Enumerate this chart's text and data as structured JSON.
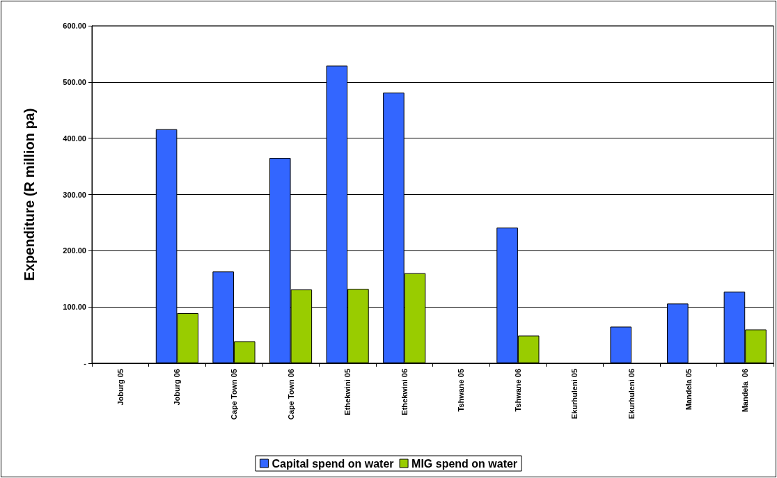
{
  "chart_data": {
    "type": "bar",
    "ylabel": "Expenditure (R million pa)",
    "categories": [
      "Joburg 05",
      "Joburg 06",
      "Cape Town 05",
      "Cape Town 06",
      "Ethekwini 05",
      "Ethekwini 06",
      "Tshwane 05",
      "Tshwane 06",
      "Ekurhuleni 05",
      "Ekurhuleni 06",
      "Mandela 05",
      "Mandela  06"
    ],
    "series": [
      {
        "name": "Capital spend on water",
        "color": "#3366ff",
        "values": [
          null,
          416,
          163,
          365,
          529,
          481,
          null,
          241,
          null,
          65,
          106,
          127
        ]
      },
      {
        "name": "MIG spend on water",
        "color": "#99cc00",
        "values": [
          null,
          89,
          39,
          131,
          132,
          160,
          null,
          49,
          null,
          null,
          null,
          60
        ]
      }
    ],
    "ylim": [
      0,
      600
    ],
    "yticks": [
      {
        "value": 0,
        "label": "-"
      },
      {
        "value": 100,
        "label": "100.00"
      },
      {
        "value": 200,
        "label": "200.00"
      },
      {
        "value": 300,
        "label": "300.00"
      },
      {
        "value": 400,
        "label": "400.00"
      },
      {
        "value": 500,
        "label": "500.00"
      },
      {
        "value": 600,
        "label": "600.00"
      }
    ],
    "grid": "y",
    "legend": "bottom"
  }
}
